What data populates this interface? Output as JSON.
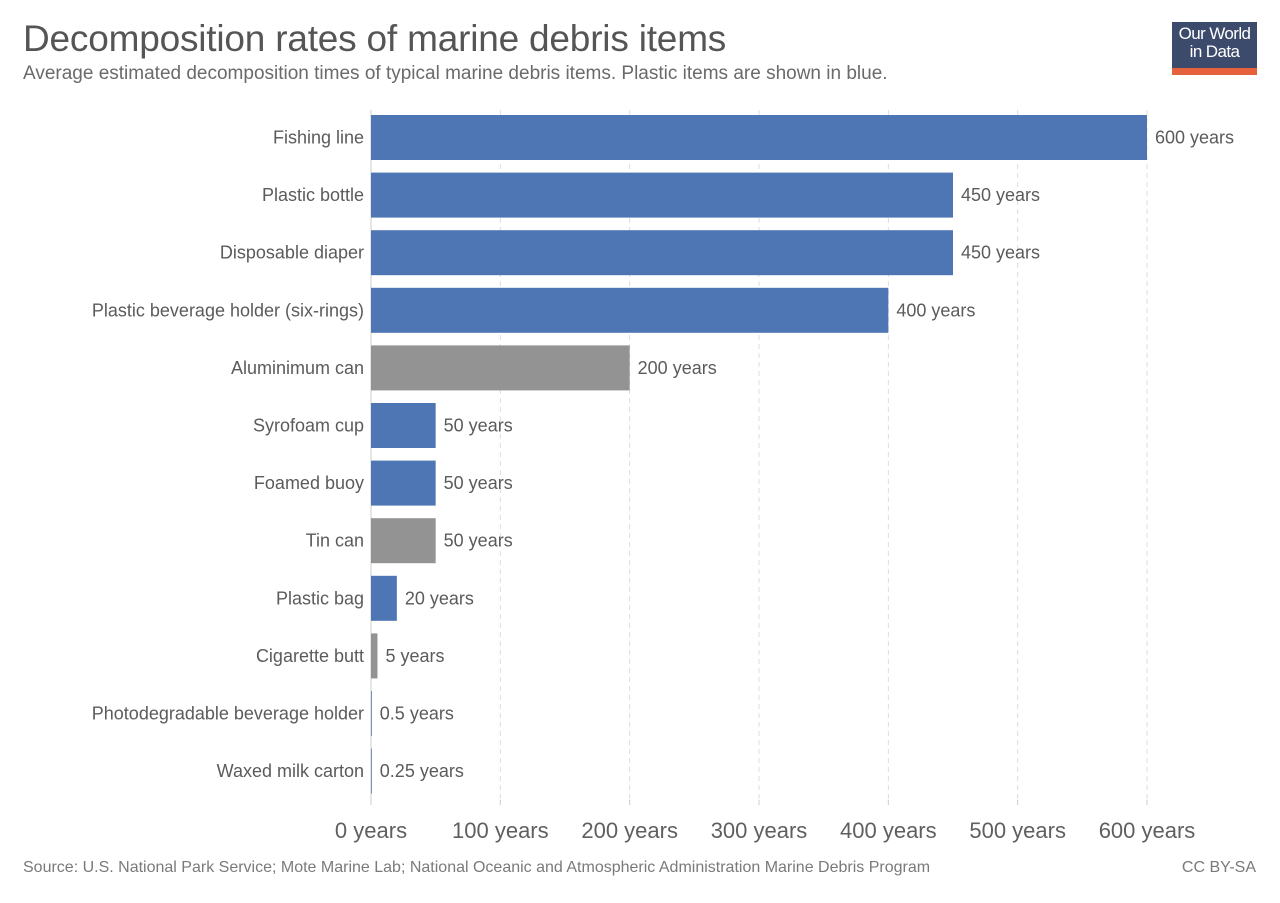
{
  "header": {
    "title": "Decomposition rates of marine debris items",
    "subtitle": "Average estimated decomposition times of typical marine debris items. Plastic items are shown in blue."
  },
  "logo": {
    "line1": "Our World",
    "line2": "in Data",
    "bg_color": "#3c4b6b",
    "accent_color": "#e5613c"
  },
  "footer": {
    "source": "Source: U.S. National Park Service; Mote Marine Lab; National Oceanic and Atmospheric Administration Marine Debris Program",
    "license": "CC BY-SA"
  },
  "chart_data": {
    "type": "bar",
    "orientation": "horizontal",
    "title": "Decomposition rates of marine debris items",
    "xlabel": "",
    "ylabel": "",
    "xlim": [
      0,
      600
    ],
    "unit": "years",
    "grid": "vertical-dashed",
    "x_ticks": [
      0,
      100,
      200,
      300,
      400,
      500,
      600
    ],
    "x_tick_labels": [
      "0 years",
      "100 years",
      "200 years",
      "300 years",
      "400 years",
      "500 years",
      "600 years"
    ],
    "colors": {
      "plastic": "#4f76b4",
      "other": "#939393"
    },
    "categories": [
      "Fishing line",
      "Plastic bottle",
      "Disposable diaper",
      "Plastic beverage holder (six-rings)",
      "Aluminimum can",
      "Syrofoam cup",
      "Foamed buoy",
      "Tin can",
      "Plastic bag",
      "Cigarette butt",
      "Photodegradable beverage holder",
      "Waxed milk carton"
    ],
    "values": [
      600,
      450,
      450,
      400,
      200,
      50,
      50,
      50,
      20,
      5,
      0.5,
      0.25
    ],
    "value_labels": [
      "600 years",
      "450 years",
      "450 years",
      "400 years",
      "200 years",
      "50 years",
      "50 years",
      "50 years",
      "20 years",
      "5 years",
      "0.5 years",
      "0.25 years"
    ],
    "is_plastic": [
      true,
      true,
      true,
      true,
      false,
      true,
      true,
      false,
      true,
      false,
      true,
      true
    ]
  }
}
